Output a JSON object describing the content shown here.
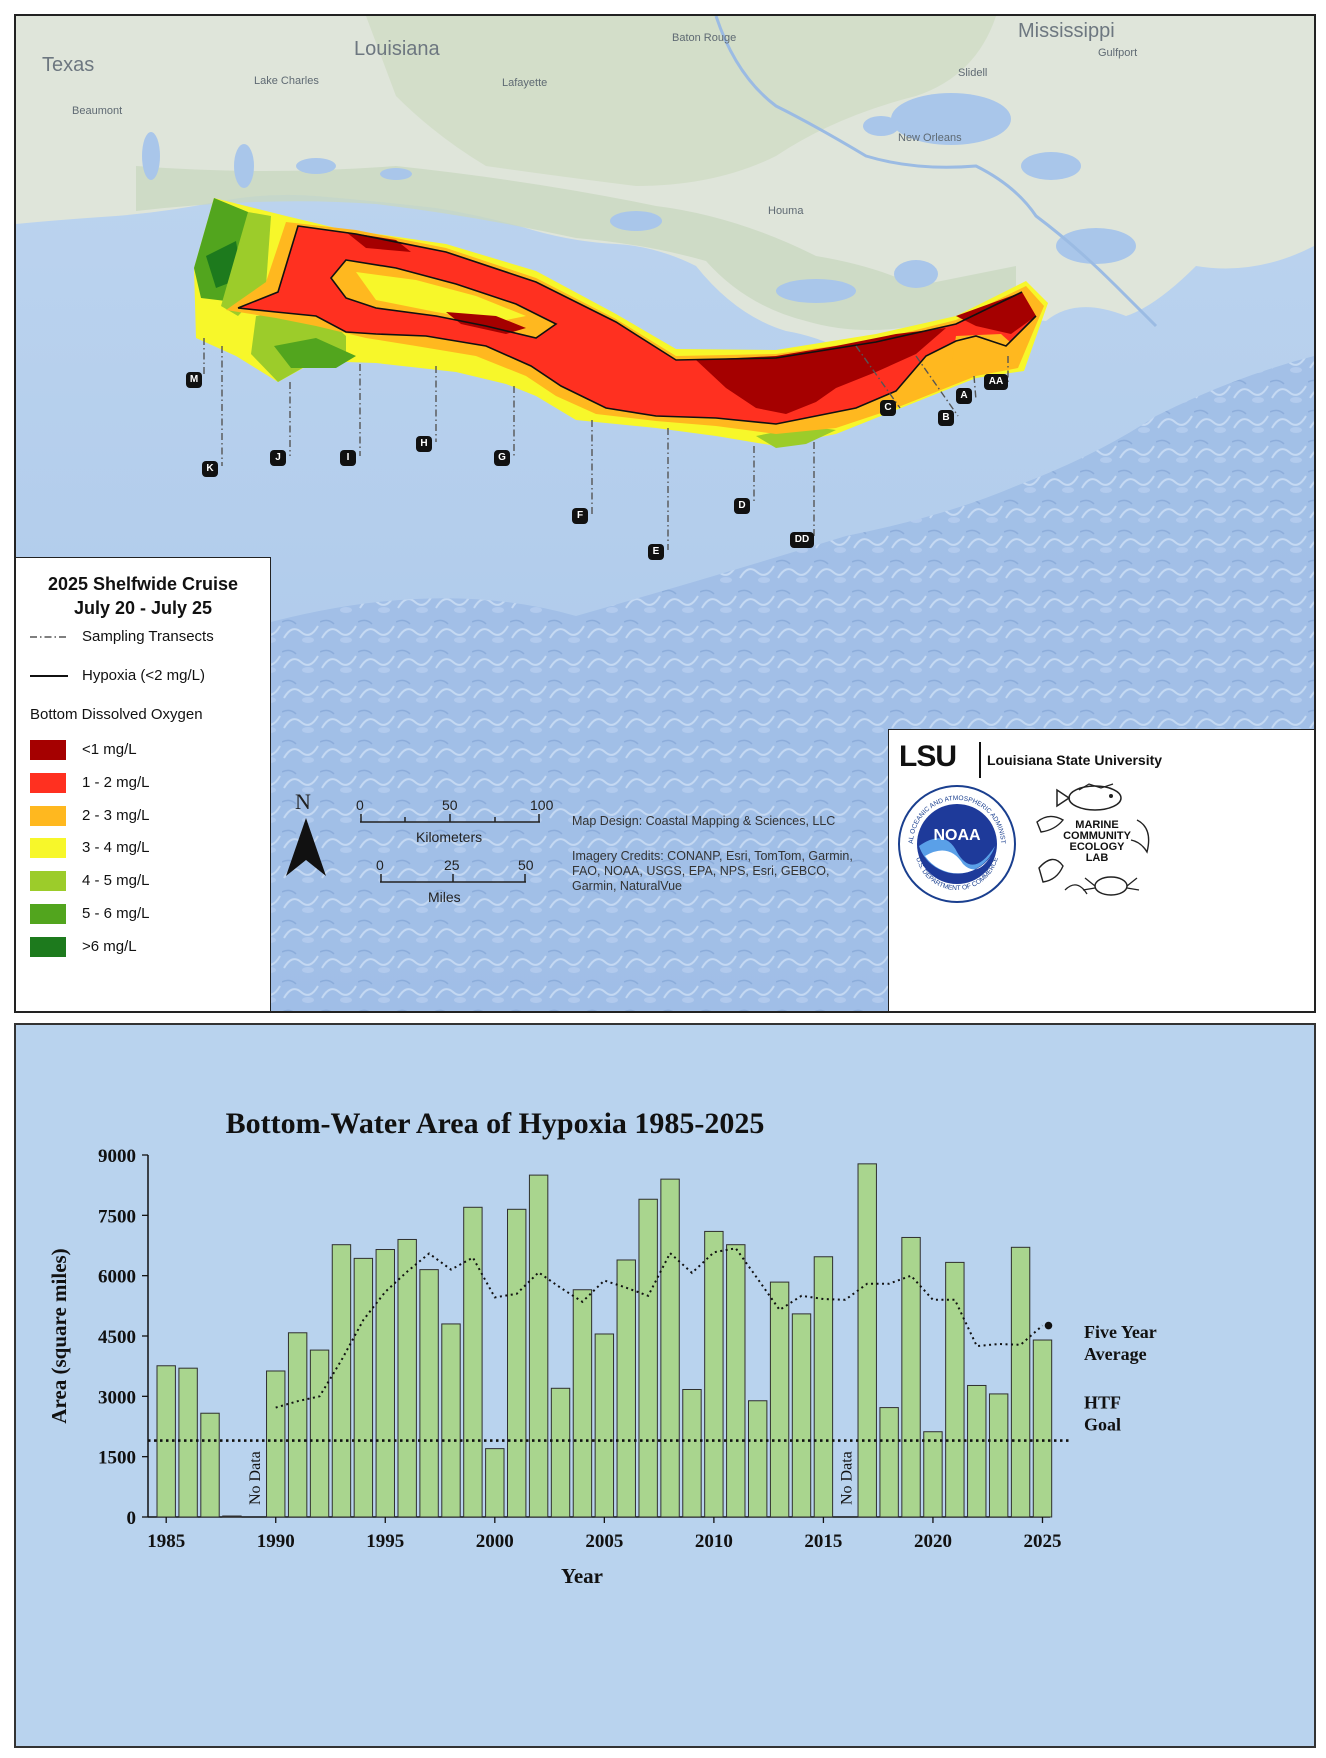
{
  "map": {
    "places": {
      "texas": "Texas",
      "louisiana": "Louisiana",
      "mississippi": "Mississippi",
      "baton_rouge": "Baton Rouge",
      "lake_charles": "Lake Charles",
      "lafayette": "Lafayette",
      "beaumont": "Beaumont",
      "slidell": "Slidell",
      "gulfport": "Gulfport",
      "new_orleans": "New Orleans",
      "houma": "Houma"
    },
    "transects": [
      "M",
      "K",
      "J",
      "I",
      "H",
      "G",
      "F",
      "E",
      "D",
      "DD",
      "C",
      "B",
      "A",
      "AA"
    ],
    "legend": {
      "title_line1": "2025 Shelfwide Cruise",
      "title_line2": "July 20 - July 25",
      "transects_label": "Sampling Transects",
      "hypoxia_label": "Hypoxia (<2 mg/L)",
      "do_heading": "Bottom Dissolved Oxygen",
      "classes": [
        {
          "label": "<1 mg/L",
          "color": "#a50000"
        },
        {
          "label": "1 - 2 mg/L",
          "color": "#ff3020"
        },
        {
          "label": "2 - 3 mg/L",
          "color": "#ffb81f"
        },
        {
          "label": "3 - 4 mg/L",
          "color": "#f7f72a"
        },
        {
          "label": "4 - 5 mg/L",
          "color": "#9ccc2a"
        },
        {
          "label": "5 - 6 mg/L",
          "color": "#52a51e"
        },
        {
          "label": ">6 mg/L",
          "color": "#1d7a1d"
        }
      ]
    },
    "north": "N",
    "scale": {
      "km_ticks": [
        "0",
        "50",
        "100"
      ],
      "km_unit": "Kilometers",
      "mi_ticks": [
        "0",
        "25",
        "50"
      ],
      "mi_unit": "Miles"
    },
    "credits": {
      "design": "Map Design: Coastal Mapping & Sciences, LLC",
      "imagery_1": "Imagery Credits: CONANP, Esri, TomTom, Garmin,",
      "imagery_2": "FAO, NOAA, USGS, EPA, NPS, Esri, GEBCO,",
      "imagery_3": "Garmin, NaturalVue"
    },
    "logos": {
      "lsu_mark": "LSU",
      "lsu_name": "Louisiana State University",
      "noaa_mark": "NOAA",
      "noaa_ring_top": "NATIONAL OCEANIC AND ATMOSPHERIC ADMINISTRATION",
      "noaa_ring_bottom": "U.S. DEPARTMENT OF COMMERCE",
      "lab_line1": "MARINE",
      "lab_line2": "COMMUNITY",
      "lab_line3": "ECOLOGY",
      "lab_line4": "LAB"
    }
  },
  "chart_data": {
    "type": "bar",
    "title": "Bottom-Water Area of Hypoxia 1985-2025",
    "xlabel": "Year",
    "ylabel": "Area (square miles)",
    "ylim": [
      0,
      9000
    ],
    "yticks": [
      "0",
      "1500",
      "3000",
      "4500",
      "6000",
      "7500",
      "9000"
    ],
    "xticks": [
      "1985",
      "1990",
      "1995",
      "2000",
      "2005",
      "2010",
      "2015",
      "2020",
      "2025"
    ],
    "years": [
      1985,
      1986,
      1987,
      1988,
      1989,
      1990,
      1991,
      1992,
      1993,
      1994,
      1995,
      1996,
      1997,
      1998,
      1999,
      2000,
      2001,
      2002,
      2003,
      2004,
      2005,
      2006,
      2007,
      2008,
      2009,
      2010,
      2011,
      2012,
      2013,
      2014,
      2015,
      2016,
      2017,
      2018,
      2019,
      2020,
      2021,
      2022,
      2023,
      2024,
      2025
    ],
    "values": [
      3760,
      3700,
      2580,
      20,
      null,
      3630,
      4580,
      4150,
      6770,
      6430,
      6650,
      6900,
      6150,
      4800,
      7700,
      1700,
      7650,
      8500,
      3200,
      5650,
      4550,
      6390,
      7900,
      8400,
      3170,
      7100,
      6770,
      2890,
      5840,
      5050,
      6470,
      null,
      8780,
      2720,
      6950,
      2120,
      6330,
      3270,
      3060,
      6705,
      4400
    ],
    "no_data_years": [
      1989,
      2016
    ],
    "no_data_label": "No Data",
    "five_year_avg": {
      "label_line1": "Five Year",
      "label_line2": "Average",
      "years": [
        1990,
        1991,
        1992,
        1993,
        1994,
        1995,
        1996,
        1997,
        1998,
        1999,
        2000,
        2001,
        2002,
        2003,
        2004,
        2005,
        2006,
        2007,
        2008,
        2009,
        2010,
        2011,
        2012,
        2013,
        2014,
        2015,
        2016,
        2017,
        2018,
        2019,
        2020,
        2021,
        2022,
        2023,
        2024,
        2025
      ],
      "values": [
        2720,
        2880,
        3000,
        3900,
        4900,
        5600,
        6100,
        6550,
        6150,
        6450,
        5460,
        5550,
        6080,
        5700,
        5350,
        5880,
        5700,
        5500,
        6560,
        6070,
        6580,
        6680,
        5920,
        5150,
        5500,
        5420,
        5400,
        5800,
        5800,
        6000,
        5400,
        5400,
        4250,
        4300,
        4280,
        4760
      ]
    },
    "goal": {
      "value": 1900,
      "label_line1": "HTF",
      "label_line2": "Goal"
    },
    "colors": {
      "bar": "#a9d58e",
      "bar_edge": "#2f2f2f",
      "background": "#b9d3ee"
    }
  }
}
